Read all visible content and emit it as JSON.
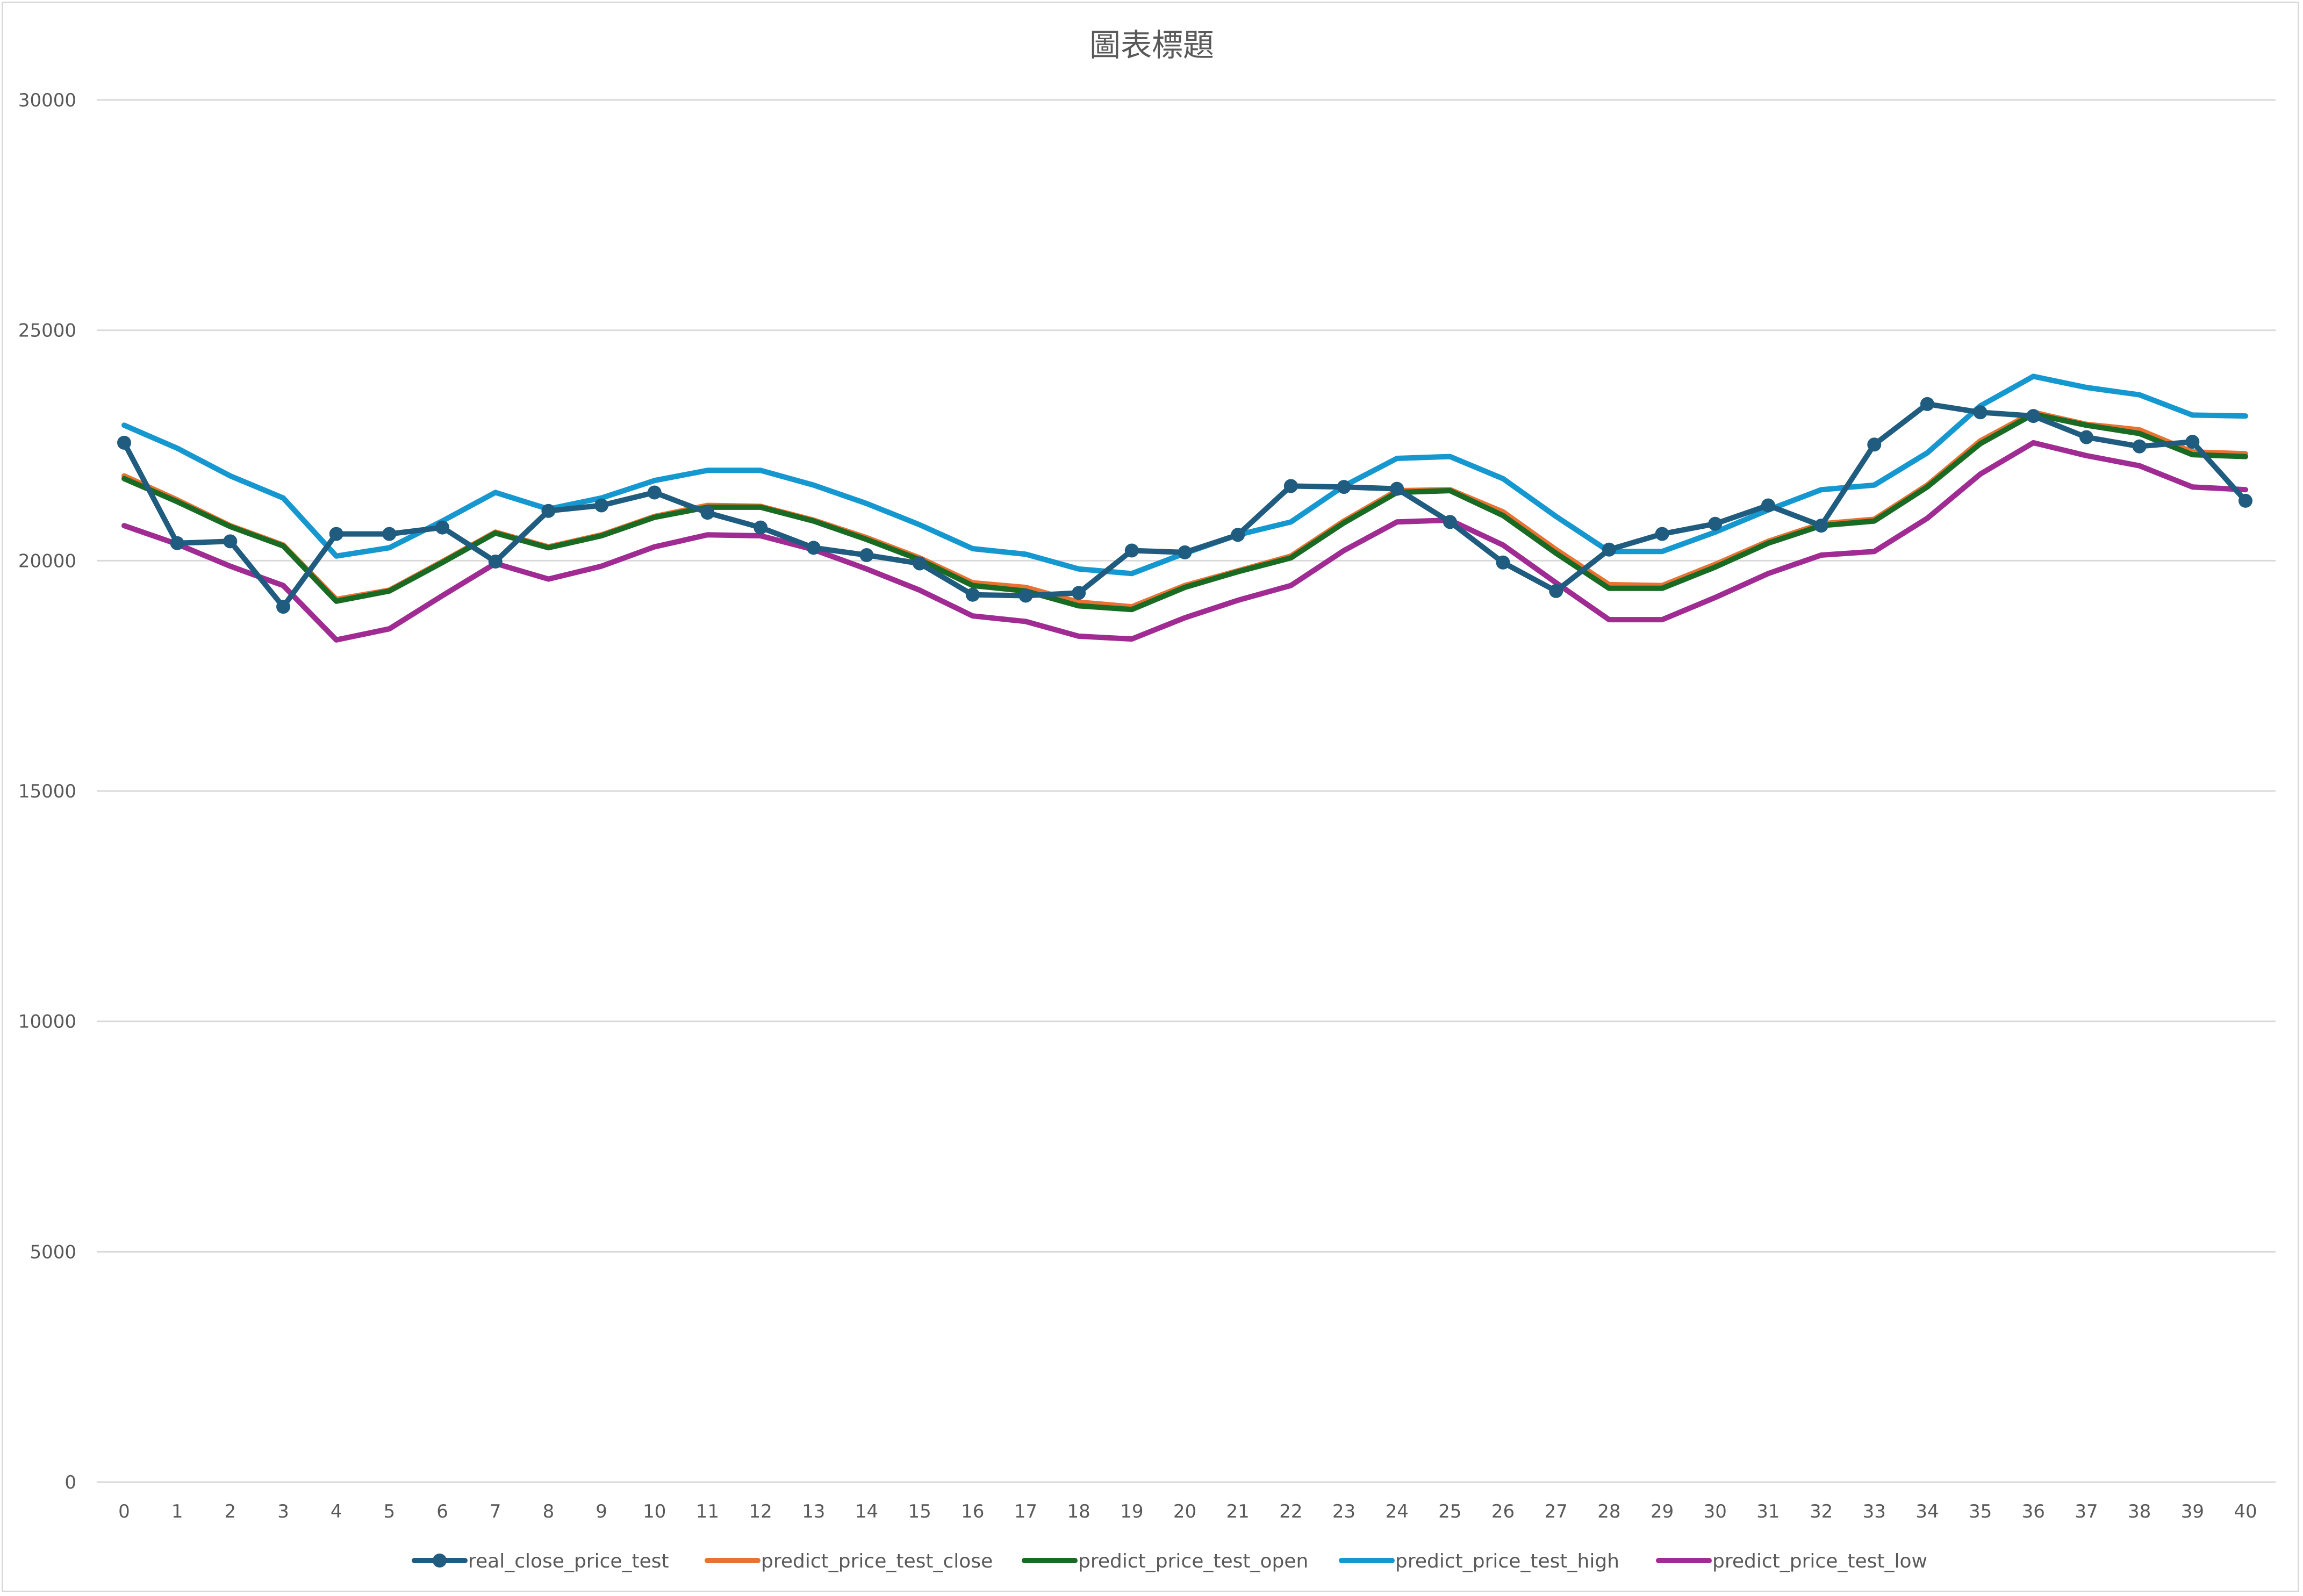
{
  "chart_data": {
    "type": "line",
    "title": "圖表標題",
    "xlabel": "",
    "ylabel": "",
    "x": [
      0,
      1,
      2,
      3,
      4,
      5,
      6,
      7,
      8,
      9,
      10,
      11,
      12,
      13,
      14,
      15,
      16,
      17,
      18,
      19,
      20,
      21,
      22,
      23,
      24,
      25,
      26,
      27,
      28,
      29,
      30,
      31,
      32,
      33,
      34,
      35,
      36,
      37,
      38,
      39,
      40
    ],
    "x_tick_labels": [
      "0",
      "1",
      "2",
      "3",
      "4",
      "5",
      "6",
      "7",
      "8",
      "9",
      "10",
      "11",
      "12",
      "13",
      "14",
      "15",
      "16",
      "17",
      "18",
      "19",
      "20",
      "21",
      "22",
      "23",
      "24",
      "25",
      "26",
      "27",
      "28",
      "29",
      "30",
      "31",
      "32",
      "33",
      "34",
      "35",
      "36",
      "37",
      "38",
      "39",
      "40"
    ],
    "y_tick_labels": [
      "0",
      "5000",
      "10000",
      "15000",
      "20000",
      "25000",
      "30000"
    ],
    "y_ticks": [
      0,
      5000,
      10000,
      15000,
      20000,
      25000,
      30000
    ],
    "ylim": [
      0,
      30000
    ],
    "grid": true,
    "legend_position": "bottom",
    "series": [
      {
        "name": "real_close_price_test",
        "color": "#1f5c7f",
        "markers": true,
        "values": [
          22560,
          20380,
          20420,
          19000,
          20580,
          20580,
          20720,
          19980,
          21080,
          21200,
          21480,
          21040,
          20720,
          20280,
          20120,
          19940,
          19260,
          19240,
          19300,
          20220,
          20180,
          20560,
          21620,
          21600,
          21560,
          20840,
          19960,
          19340,
          20240,
          20580,
          20800,
          21200,
          20760,
          22520,
          23400,
          23220,
          23140,
          22680,
          22480,
          22580,
          21300
        ]
      },
      {
        "name": "predict_price_test_close",
        "color": "#e97132",
        "markers": false,
        "values": [
          21840,
          21320,
          20760,
          20340,
          19160,
          19360,
          19980,
          20620,
          20300,
          20560,
          20960,
          21200,
          21180,
          20880,
          20500,
          20060,
          19520,
          19420,
          19100,
          19000,
          19460,
          19780,
          20100,
          20860,
          21520,
          21540,
          21060,
          20240,
          19480,
          19460,
          19920,
          20420,
          20800,
          20900,
          21640,
          22600,
          23220,
          22960,
          22840,
          22360,
          22320
        ]
      },
      {
        "name": "predict_price_test_open",
        "color": "#196b24",
        "markers": false,
        "values": [
          21780,
          21280,
          20740,
          20320,
          19120,
          19340,
          19960,
          20600,
          20280,
          20540,
          20940,
          21160,
          21160,
          20860,
          20460,
          20020,
          19460,
          19340,
          19020,
          18940,
          19420,
          19760,
          20060,
          20820,
          21480,
          21520,
          20980,
          20160,
          19400,
          19400,
          19860,
          20380,
          20760,
          20860,
          21600,
          22540,
          23180,
          22940,
          22760,
          22300,
          22260
        ]
      },
      {
        "name": "predict_price_test_high",
        "color": "#1597d0",
        "markers": false,
        "values": [
          22940,
          22440,
          21840,
          21360,
          20100,
          20280,
          20860,
          21480,
          21120,
          21360,
          21740,
          21960,
          21960,
          21640,
          21240,
          20780,
          20260,
          20140,
          19820,
          19720,
          20160,
          20560,
          20840,
          21620,
          22220,
          22260,
          21780,
          20960,
          20200,
          20200,
          20620,
          21100,
          21540,
          21640,
          22340,
          23360,
          24000,
          23760,
          23600,
          23160,
          23140
        ]
      },
      {
        "name": "predict_price_test_low",
        "color": "#a02b93",
        "markers": false,
        "values": [
          20760,
          20360,
          19880,
          19460,
          18280,
          18520,
          19240,
          19940,
          19600,
          19880,
          20300,
          20560,
          20540,
          20240,
          19820,
          19360,
          18800,
          18680,
          18360,
          18300,
          18760,
          19140,
          19460,
          20220,
          20840,
          20880,
          20340,
          19520,
          18720,
          18720,
          19200,
          19720,
          20120,
          20200,
          20920,
          21880,
          22560,
          22280,
          22060,
          21600,
          21540
        ]
      }
    ]
  }
}
